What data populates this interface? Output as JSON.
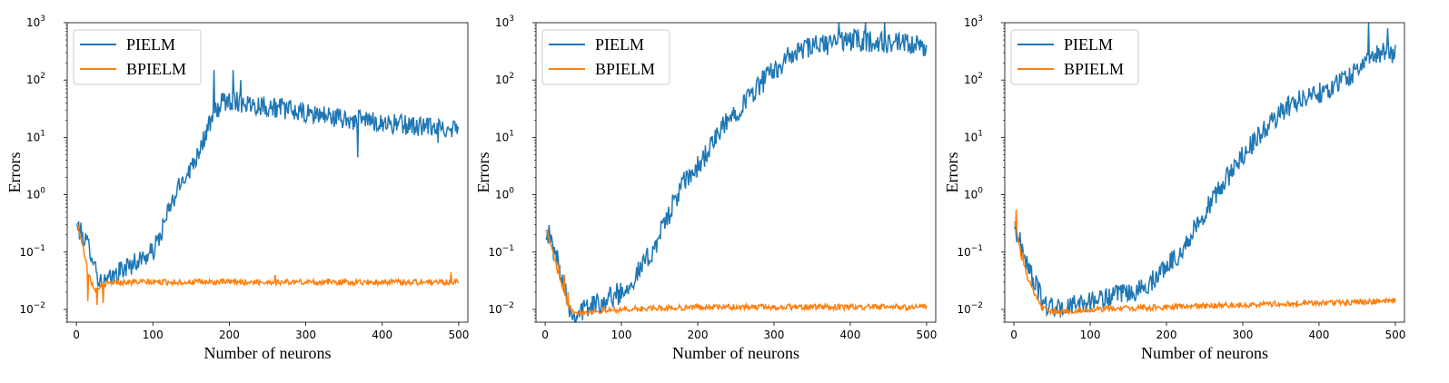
{
  "colors": {
    "pielm": "#1f77b4",
    "bpielm": "#ff7f0e",
    "axis": "#000000",
    "legend_border": "#cccccc"
  },
  "chart_data": [
    {
      "type": "line",
      "xlabel": "Number of neurons",
      "ylabel": "Errors",
      "yscale": "log",
      "xlim": [
        -12,
        512
      ],
      "ylim": [
        0.006,
        1000
      ],
      "xticks": [
        0,
        100,
        200,
        300,
        400,
        500
      ],
      "yticks": [
        {
          "v": 0.01,
          "b": "10",
          "e": "−2"
        },
        {
          "v": 0.1,
          "b": "10",
          "e": "−1"
        },
        {
          "v": 1,
          "b": "10",
          "e": "0"
        },
        {
          "v": 10,
          "b": "10",
          "e": "1"
        },
        {
          "v": 100,
          "b": "10",
          "e": "2"
        },
        {
          "v": 1000,
          "b": "10",
          "e": "3"
        }
      ],
      "legend": "top-left",
      "series": [
        {
          "name": "PIELM",
          "color": "#1f77b4",
          "x": [
            0,
            20,
            30,
            40,
            60,
            80,
            100,
            110,
            120,
            140,
            150,
            160,
            170,
            180,
            190,
            200,
            220,
            250,
            280,
            300,
            320,
            340,
            360,
            380,
            400,
            420,
            440,
            460,
            480,
            500
          ],
          "y": [
            0.3,
            0.1,
            0.03,
            0.03,
            0.05,
            0.07,
            0.1,
            0.2,
            0.5,
            2,
            3,
            6,
            12,
            25,
            40,
            45,
            40,
            35,
            30,
            25,
            25,
            22,
            20,
            20,
            18,
            17,
            16,
            15,
            15,
            15
          ],
          "noise": 0.18,
          "spikes": [
            [
              180,
              150
            ],
            [
              205,
              150
            ],
            [
              215,
              100
            ],
            [
              368,
              4.5
            ],
            [
              473,
              8
            ]
          ]
        },
        {
          "name": "BPIELM",
          "color": "#ff7f0e",
          "x": [
            0,
            5,
            10,
            15,
            20,
            25,
            30,
            40,
            50,
            60,
            100,
            200,
            300,
            400,
            500
          ],
          "y": [
            0.35,
            0.2,
            0.1,
            0.05,
            0.03,
            0.022,
            0.025,
            0.028,
            0.03,
            0.03,
            0.03,
            0.03,
            0.03,
            0.03,
            0.03
          ],
          "noise": 0.05,
          "spikes": [
            [
              15,
              0.014
            ],
            [
              27,
              0.012
            ],
            [
              35,
              0.013
            ],
            [
              260,
              0.04
            ],
            [
              490,
              0.045
            ]
          ]
        }
      ]
    },
    {
      "type": "line",
      "xlabel": "Number of neurons",
      "ylabel": "Errors",
      "yscale": "log",
      "xlim": [
        -12,
        512
      ],
      "ylim": [
        0.006,
        1000
      ],
      "xticks": [
        0,
        100,
        200,
        300,
        400,
        500
      ],
      "yticks": [
        {
          "v": 0.01,
          "b": "10",
          "e": "−2"
        },
        {
          "v": 0.1,
          "b": "10",
          "e": "−1"
        },
        {
          "v": 1,
          "b": "10",
          "e": "0"
        },
        {
          "v": 10,
          "b": "10",
          "e": "1"
        },
        {
          "v": 100,
          "b": "10",
          "e": "2"
        },
        {
          "v": 1000,
          "b": "10",
          "e": "3"
        }
      ],
      "legend": "top-left",
      "series": [
        {
          "name": "PIELM",
          "color": "#1f77b4",
          "x": [
            0,
            20,
            35,
            50,
            80,
            100,
            120,
            140,
            160,
            180,
            200,
            220,
            240,
            260,
            280,
            300,
            320,
            340,
            360,
            380,
            400,
            420,
            440,
            460,
            480,
            500
          ],
          "y": [
            0.3,
            0.05,
            0.008,
            0.01,
            0.015,
            0.02,
            0.04,
            0.1,
            0.4,
            1.5,
            3,
            8,
            20,
            40,
            80,
            150,
            250,
            350,
            400,
            450,
            500,
            480,
            450,
            420,
            400,
            350
          ],
          "noise": 0.2,
          "spikes": [
            [
              385,
              1000
            ],
            [
              420,
              1000
            ],
            [
              445,
              1000
            ]
          ]
        },
        {
          "name": "BPIELM",
          "color": "#ff7f0e",
          "x": [
            0,
            10,
            20,
            30,
            40,
            50,
            100,
            200,
            300,
            400,
            500
          ],
          "y": [
            0.3,
            0.1,
            0.03,
            0.012,
            0.009,
            0.009,
            0.01,
            0.011,
            0.011,
            0.011,
            0.011
          ],
          "noise": 0.05,
          "spikes": [
            [
              18,
              0.06
            ],
            [
              25,
              0.04
            ],
            [
              30,
              0.02
            ]
          ]
        }
      ]
    },
    {
      "type": "line",
      "xlabel": "Number of neurons",
      "ylabel": "Errors",
      "yscale": "log",
      "xlim": [
        -12,
        512
      ],
      "ylim": [
        0.006,
        1000
      ],
      "xticks": [
        0,
        100,
        200,
        300,
        400,
        500
      ],
      "yticks": [
        {
          "v": 0.01,
          "b": "10",
          "e": "−2"
        },
        {
          "v": 0.1,
          "b": "10",
          "e": "−1"
        },
        {
          "v": 1,
          "b": "10",
          "e": "0"
        },
        {
          "v": 10,
          "b": "10",
          "e": "1"
        },
        {
          "v": 100,
          "b": "10",
          "e": "2"
        },
        {
          "v": 1000,
          "b": "10",
          "e": "3"
        }
      ],
      "legend": "top-left",
      "series": [
        {
          "name": "PIELM",
          "color": "#1f77b4",
          "x": [
            0,
            20,
            40,
            60,
            80,
            100,
            120,
            140,
            160,
            180,
            200,
            220,
            240,
            260,
            280,
            300,
            320,
            340,
            360,
            380,
            400,
            420,
            440,
            460,
            480,
            500
          ],
          "y": [
            0.3,
            0.05,
            0.012,
            0.01,
            0.012,
            0.014,
            0.016,
            0.018,
            0.02,
            0.03,
            0.06,
            0.1,
            0.3,
            0.8,
            2,
            5,
            10,
            20,
            35,
            50,
            60,
            80,
            120,
            200,
            300,
            300
          ],
          "noise": 0.18,
          "spikes": [
            [
              465,
              1000
            ],
            [
              490,
              800
            ]
          ]
        },
        {
          "name": "BPIELM",
          "color": "#ff7f0e",
          "x": [
            0,
            5,
            10,
            20,
            30,
            40,
            50,
            60,
            100,
            200,
            300,
            400,
            500
          ],
          "y": [
            0.4,
            0.2,
            0.08,
            0.03,
            0.015,
            0.01,
            0.009,
            0.009,
            0.01,
            0.011,
            0.012,
            0.013,
            0.014
          ],
          "noise": 0.05,
          "spikes": [
            [
              3,
              0.55
            ],
            [
              12,
              0.1
            ]
          ]
        }
      ]
    }
  ]
}
